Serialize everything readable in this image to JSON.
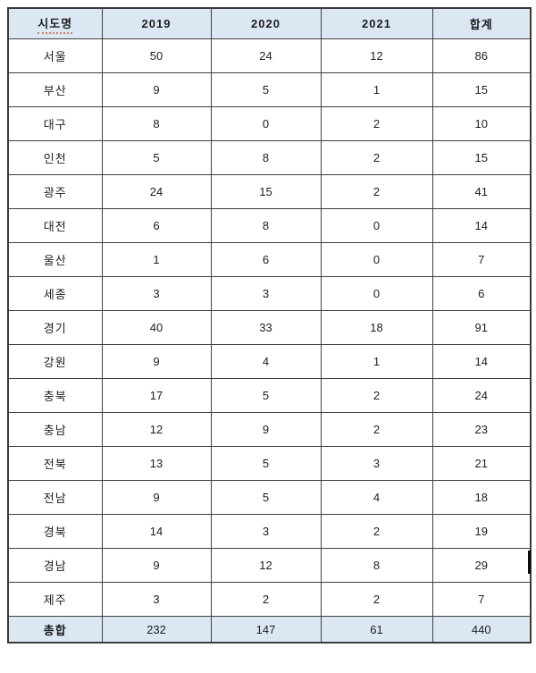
{
  "table": {
    "columns": [
      "시도명",
      "2019",
      "2020",
      "2021",
      "합계"
    ],
    "rows": [
      {
        "name": "서울",
        "values": [
          "50",
          "24",
          "12",
          "86"
        ]
      },
      {
        "name": "부산",
        "values": [
          "9",
          "5",
          "1",
          "15"
        ]
      },
      {
        "name": "대구",
        "values": [
          "8",
          "0",
          "2",
          "10"
        ]
      },
      {
        "name": "인천",
        "values": [
          "5",
          "8",
          "2",
          "15"
        ]
      },
      {
        "name": "광주",
        "values": [
          "24",
          "15",
          "2",
          "41"
        ]
      },
      {
        "name": "대전",
        "values": [
          "6",
          "8",
          "0",
          "14"
        ]
      },
      {
        "name": "울산",
        "values": [
          "1",
          "6",
          "0",
          "7"
        ]
      },
      {
        "name": "세종",
        "values": [
          "3",
          "3",
          "0",
          "6"
        ]
      },
      {
        "name": "경기",
        "values": [
          "40",
          "33",
          "18",
          "91"
        ]
      },
      {
        "name": "강원",
        "values": [
          "9",
          "4",
          "1",
          "14"
        ]
      },
      {
        "name": "충북",
        "values": [
          "17",
          "5",
          "2",
          "24"
        ]
      },
      {
        "name": "충남",
        "values": [
          "12",
          "9",
          "2",
          "23"
        ]
      },
      {
        "name": "전북",
        "values": [
          "13",
          "5",
          "3",
          "21"
        ]
      },
      {
        "name": "전남",
        "values": [
          "9",
          "5",
          "4",
          "18"
        ]
      },
      {
        "name": "경북",
        "values": [
          "14",
          "3",
          "2",
          "19"
        ]
      },
      {
        "name": "경남",
        "values": [
          "9",
          "12",
          "8",
          "29"
        ]
      },
      {
        "name": "제주",
        "values": [
          "3",
          "2",
          "2",
          "7"
        ]
      }
    ],
    "total": {
      "name": "총합",
      "values": [
        "232",
        "147",
        "61",
        "440"
      ]
    }
  },
  "colors": {
    "header_background": "#dbe8f4",
    "grid_line": "#3f3f3f",
    "text": "#1d1d1d",
    "spellcheck_underline": "#d0806a"
  },
  "chart_data": {
    "type": "table",
    "title": "",
    "columns": [
      "시도명",
      "2019",
      "2020",
      "2021",
      "합계"
    ],
    "rows": [
      [
        "서울",
        50,
        24,
        12,
        86
      ],
      [
        "부산",
        9,
        5,
        1,
        15
      ],
      [
        "대구",
        8,
        0,
        2,
        10
      ],
      [
        "인천",
        5,
        8,
        2,
        15
      ],
      [
        "광주",
        24,
        15,
        2,
        41
      ],
      [
        "대전",
        6,
        8,
        0,
        14
      ],
      [
        "울산",
        1,
        6,
        0,
        7
      ],
      [
        "세종",
        3,
        3,
        0,
        6
      ],
      [
        "경기",
        40,
        33,
        18,
        91
      ],
      [
        "강원",
        9,
        4,
        1,
        14
      ],
      [
        "충북",
        17,
        5,
        2,
        24
      ],
      [
        "충남",
        12,
        9,
        2,
        23
      ],
      [
        "전북",
        13,
        5,
        3,
        21
      ],
      [
        "전남",
        9,
        5,
        4,
        18
      ],
      [
        "경북",
        14,
        3,
        2,
        19
      ],
      [
        "경남",
        9,
        12,
        8,
        29
      ],
      [
        "제주",
        3,
        2,
        2,
        7
      ],
      [
        "총합",
        232,
        147,
        61,
        440
      ]
    ]
  }
}
